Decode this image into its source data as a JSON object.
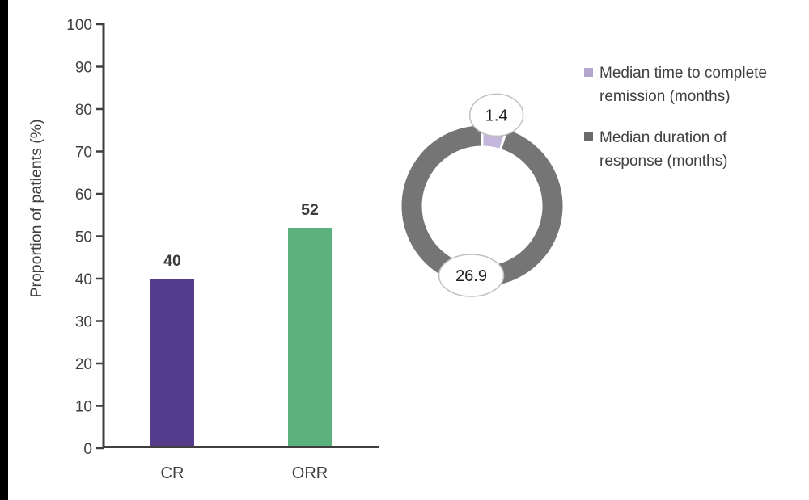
{
  "page": {
    "background": "#ffffff",
    "left_strip_color": "#000000"
  },
  "chart_data": [
    {
      "type": "bar",
      "title": "",
      "xlabel": "",
      "ylabel": "Proportion of patients (%)",
      "categories": [
        "CR",
        "ORR"
      ],
      "values": [
        40,
        52
      ],
      "value_labels": [
        "40",
        "52"
      ],
      "bar_colors": [
        "#553b8b",
        "#5bb27c"
      ],
      "ylim": [
        0,
        100
      ],
      "ytick_step": 10,
      "ytick_labels": [
        "0",
        "10",
        "20",
        "30",
        "40",
        "50",
        "60",
        "70",
        "80",
        "90",
        "100"
      ],
      "grid": "off",
      "axis_color": "#3f3f3f",
      "text_color": "#404040",
      "value_label_color": "#3b3b3b"
    },
    {
      "type": "pie",
      "subtype": "donut",
      "title": "",
      "segments": [
        {
          "label": "Median time to complete remission (months)",
          "value": 1.4,
          "display": "1.4",
          "color": "#c4b7de"
        },
        {
          "label": "Median duration of response (months)",
          "value": 26.9,
          "display": "26.9",
          "color": "#757575"
        }
      ],
      "callout_text_color": "#1f1f1f",
      "callout_border_color": "#bfbfbf",
      "segment_border_color": "#ffffff"
    }
  ],
  "legend": {
    "position": "right",
    "items": [
      {
        "label": "Median time to complete remission (months)",
        "lines": [
          "Median time to complete",
          "remission (months)"
        ],
        "color": "#b3a6cf"
      },
      {
        "label": "Median duration of response (months)",
        "lines": [
          "Median duration of",
          "response (months)"
        ],
        "color": "#6b6b6b"
      }
    ]
  }
}
